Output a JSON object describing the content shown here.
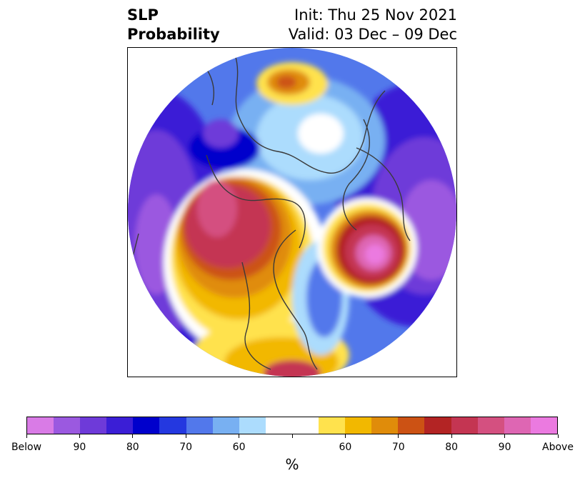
{
  "header": {
    "title_line1": "SLP",
    "title_line2": "Probability",
    "init": "Init: Thu 25 Nov 2021",
    "valid": "Valid: 03 Dec – 09 Dec"
  },
  "colors": {
    "below": [
      "#d97be6",
      "#9b59e0",
      "#6e3ad9",
      "#3b1ed6",
      "#0000cc",
      "#2438e0",
      "#5278eb",
      "#78b0f2",
      "#acdcfd"
    ],
    "neutral": "#ffffff",
    "above": [
      "#ffe24d",
      "#f2b800",
      "#e08c0a",
      "#cc5214",
      "#b32424",
      "#c43552",
      "#d45080",
      "#de66b3",
      "#eb7ae0"
    ],
    "coastline": "#3a3a3a"
  },
  "colorbar": {
    "ticks": [
      {
        "label": "Below",
        "frac": 0.0
      },
      {
        "label": "90",
        "frac": 0.1
      },
      {
        "label": "80",
        "frac": 0.2
      },
      {
        "label": "70",
        "frac": 0.3
      },
      {
        "label": "60",
        "frac": 0.4
      },
      {
        "label": "",
        "frac": 0.5
      },
      {
        "label": "60",
        "frac": 0.6
      },
      {
        "label": "70",
        "frac": 0.7
      },
      {
        "label": "80",
        "frac": 0.8
      },
      {
        "label": "90",
        "frac": 0.9
      },
      {
        "label": "Above",
        "frac": 1.0
      }
    ],
    "unit": "%"
  }
}
